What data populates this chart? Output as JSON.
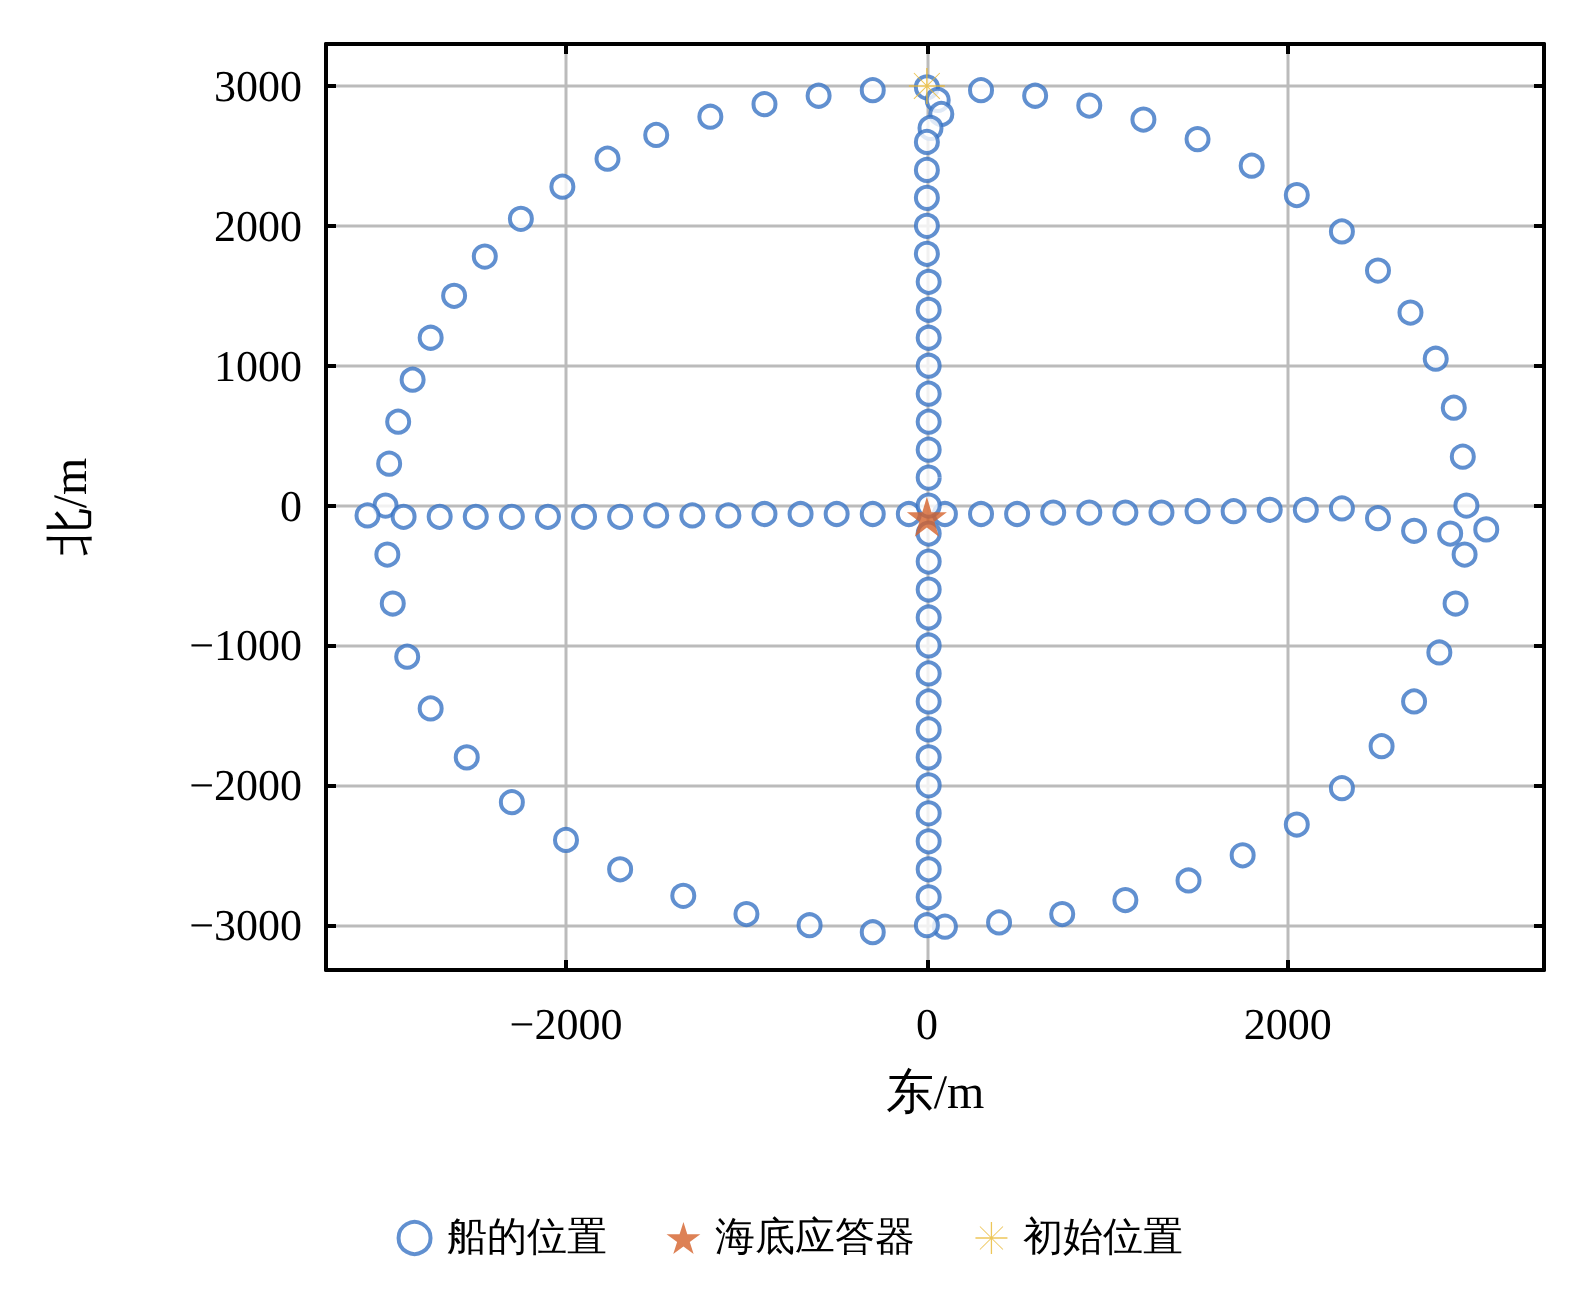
{
  "chart_data": {
    "type": "scatter",
    "xlabel": "东/m",
    "ylabel": "北/m",
    "xlim": [
      -3330,
      3420
    ],
    "ylim": [
      -3320,
      3300
    ],
    "xticks": [
      -2000,
      0,
      2000
    ],
    "yticks": [
      -3000,
      -2000,
      -1000,
      0,
      1000,
      2000,
      3000
    ],
    "grid": true,
    "legend": "bottom",
    "series": [
      {
        "name": "船的位置",
        "color": "#3a74c4",
        "marker": "circle",
        "x": [
          -3000,
          -2980,
          -2930,
          -2850,
          -2750,
          -2620,
          -2450,
          -2250,
          -2020,
          -1770,
          -1500,
          -1200,
          -900,
          -600,
          -300,
          0,
          300,
          600,
          900,
          1200,
          1500,
          1800,
          2050,
          2300,
          2500,
          2680,
          2820,
          2920,
          2970,
          2990,
          2980,
          2930,
          2840,
          2700,
          2520,
          2300,
          2050,
          1750,
          1450,
          1100,
          750,
          400,
          100,
          -300,
          -650,
          -1000,
          -1350,
          -1700,
          -2000,
          -2300,
          -2550,
          -2750,
          -2880,
          -2960,
          -2990,
          -3100,
          -2900,
          -2700,
          -2500,
          -2300,
          -2100,
          -1900,
          -1700,
          -1500,
          -1300,
          -1100,
          -900,
          -700,
          -500,
          -300,
          -100,
          100,
          300,
          500,
          700,
          900,
          1100,
          1300,
          1500,
          1700,
          1900,
          2100,
          2300,
          2500,
          2700,
          2900,
          3100,
          60,
          80,
          20,
          0,
          0,
          0,
          0,
          0,
          10,
          10,
          10,
          10,
          10,
          10,
          10,
          10,
          10,
          10,
          10,
          10,
          10,
          10,
          10,
          10,
          10,
          10,
          10,
          10,
          10,
          10,
          10,
          0
        ],
        "values": [
          0,
          300,
          600,
          900,
          1200,
          1500,
          1780,
          2050,
          2280,
          2480,
          2650,
          2780,
          2870,
          2930,
          2970,
          2990,
          2970,
          2930,
          2860,
          2760,
          2620,
          2430,
          2220,
          1960,
          1680,
          1380,
          1050,
          700,
          350,
          0,
          -350,
          -700,
          -1050,
          -1400,
          -1720,
          -2020,
          -2280,
          -2500,
          -2680,
          -2820,
          -2920,
          -2980,
          -3010,
          -3050,
          -3000,
          -2920,
          -2790,
          -2600,
          -2390,
          -2120,
          -1800,
          -1450,
          -1080,
          -700,
          -350,
          -70,
          -80,
          -80,
          -80,
          -80,
          -80,
          -80,
          -80,
          -70,
          -70,
          -70,
          -60,
          -60,
          -60,
          -60,
          -60,
          -60,
          -60,
          -60,
          -50,
          -50,
          -50,
          -50,
          -40,
          -40,
          -30,
          -30,
          -20,
          -90,
          -180,
          -200,
          -170,
          2900,
          2800,
          2700,
          2600,
          2400,
          2200,
          2000,
          1800,
          1600,
          1400,
          1200,
          1000,
          800,
          600,
          400,
          200,
          0,
          -200,
          -400,
          -600,
          -800,
          -1000,
          -1200,
          -1400,
          -1600,
          -1800,
          -2000,
          -2200,
          -2400,
          -2600,
          -2800,
          -3000
        ]
      },
      {
        "name": "海底应答器",
        "color": "#d4622a",
        "marker": "star",
        "x": [
          0
        ],
        "values": [
          -80
        ]
      },
      {
        "name": "初始位置",
        "color": "#e8b830",
        "marker": "cross",
        "x": [
          0
        ],
        "values": [
          3000
        ]
      }
    ]
  }
}
